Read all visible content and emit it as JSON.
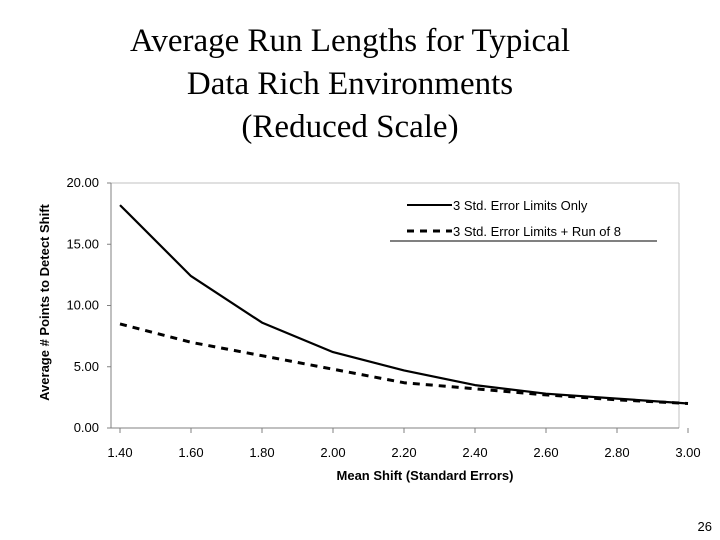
{
  "slide": {
    "title_lines": [
      "Average Run Lengths for Typical",
      "Data Rich Environments",
      "(Reduced Scale)"
    ],
    "page_number": "26"
  },
  "chart_data": {
    "type": "line",
    "title": "Average Run Lengths for Typical Data Rich Environments (Reduced Scale)",
    "xlabel": "Mean Shift (Standard Errors)",
    "ylabel": "Average # Points to Detect Shift",
    "xlim": [
      1.4,
      3.0
    ],
    "ylim": [
      0,
      20
    ],
    "x_ticks": [
      "1.40",
      "1.60",
      "1.80",
      "2.00",
      "2.20",
      "2.40",
      "2.60",
      "2.80",
      "3.00"
    ],
    "y_ticks": [
      "0.00",
      "5.00",
      "10.00",
      "15.00",
      "20.00"
    ],
    "legend_position": "top-right",
    "x": [
      1.4,
      1.6,
      1.8,
      2.0,
      2.2,
      2.4,
      2.6,
      2.8,
      3.0
    ],
    "series": [
      {
        "name": "3 Std. Error Limits Only",
        "style": "solid",
        "values": [
          18.2,
          12.4,
          8.6,
          6.2,
          4.7,
          3.5,
          2.8,
          2.4,
          2.0
        ]
      },
      {
        "name": "3 Std. Error Limits + Run of 8",
        "style": "dashed",
        "values": [
          8.5,
          7.0,
          5.9,
          4.8,
          3.7,
          3.2,
          2.7,
          2.3,
          2.0
        ]
      }
    ]
  }
}
